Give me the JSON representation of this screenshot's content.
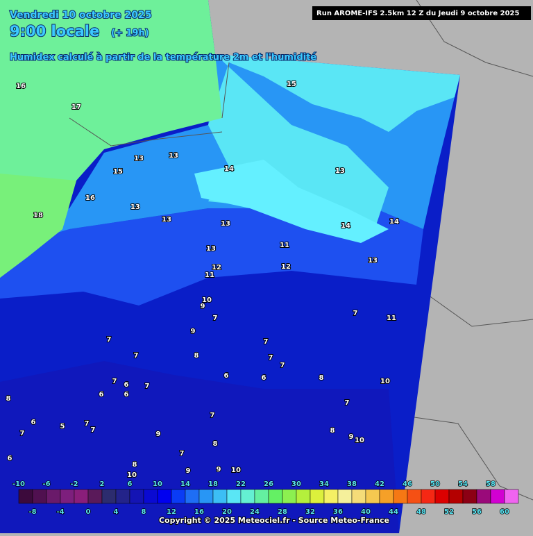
{
  "header": {
    "date": "Vendredi 10 octobre 2025",
    "time": "9:00 locale",
    "lead": "(+ 19h)",
    "run": "Run AROME-IFS 2.5km 12 Z du Jeudi 9 octobre 2025",
    "subtitle": "Humidex calculé à partir de la température 2m et l'humidité"
  },
  "contour_labels": [
    16,
    17,
    18,
    15,
    13,
    13,
    15,
    14,
    13,
    16,
    13,
    13,
    13,
    14,
    14,
    13,
    11,
    12,
    12,
    13,
    11,
    10,
    9,
    7,
    7,
    11,
    9,
    7,
    7,
    8,
    7,
    7,
    7,
    6,
    6,
    8,
    10,
    7,
    6,
    7,
    6,
    8,
    6,
    7,
    7,
    5,
    7,
    7,
    6,
    9,
    8,
    9,
    10,
    7,
    8,
    7,
    6,
    8,
    10,
    9,
    10,
    9
  ],
  "color_scale": {
    "top_labels": [
      -10,
      -6,
      -2,
      2,
      6,
      10,
      14,
      18,
      22,
      26,
      30,
      34,
      38,
      42,
      46,
      50,
      54,
      58
    ],
    "bottom_labels": [
      -8,
      -4,
      0,
      4,
      8,
      12,
      16,
      20,
      24,
      28,
      32,
      36,
      40,
      44,
      48,
      52,
      56,
      60
    ],
    "colors": [
      "#3c0a3c",
      "#501050",
      "#6a1a6a",
      "#7d1f7d",
      "#8a1e7a",
      "#5a1a5a",
      "#2c2c6e",
      "#23238a",
      "#1414b4",
      "#0a0ad2",
      "#0000f0",
      "#0a3cf5",
      "#1e6ef5",
      "#2896f5",
      "#3cbef5",
      "#5ae6f5",
      "#64f0d2",
      "#64f0a0",
      "#64f064",
      "#8cf050",
      "#b4f03c",
      "#dcf03c",
      "#f5f064",
      "#f5f09b",
      "#f5dc78",
      "#f5c850",
      "#f5a028",
      "#f57814",
      "#f55014",
      "#f52814",
      "#dc0000",
      "#b40000",
      "#8c0014",
      "#9a0a7a",
      "#d200d2",
      "#f064f0"
    ]
  },
  "footer": "Copyright © 2025 Meteociel.fr - Source Meteo-France"
}
